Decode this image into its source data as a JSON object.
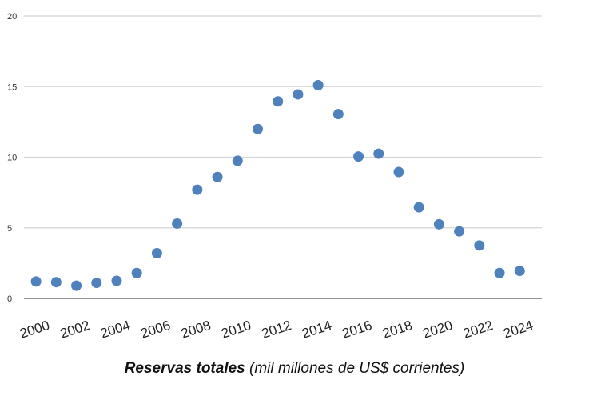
{
  "chart_data": {
    "type": "scatter",
    "title": "",
    "xlabel": "",
    "ylabel": "",
    "x": [
      2000,
      2001,
      2002,
      2003,
      2004,
      2005,
      2006,
      2007,
      2008,
      2009,
      2010,
      2011,
      2012,
      2013,
      2014,
      2015,
      2016,
      2017,
      2018,
      2019,
      2020,
      2021,
      2022,
      2023,
      2024
    ],
    "values": [
      1.2,
      1.15,
      0.9,
      1.1,
      1.25,
      1.8,
      3.2,
      5.3,
      7.7,
      8.6,
      9.75,
      12.0,
      13.95,
      14.45,
      15.1,
      13.05,
      10.05,
      10.25,
      8.95,
      6.45,
      5.25,
      4.75,
      3.75,
      1.8,
      1.95
    ],
    "xticks": [
      "2000",
      "2002",
      "2004",
      "2006",
      "2008",
      "2010",
      "2012",
      "2014",
      "2016",
      "2018",
      "2020",
      "2022",
      "2024"
    ],
    "yticks": [
      "0",
      "5",
      "10",
      "15",
      "20"
    ],
    "ylim": [
      0,
      20
    ],
    "xlim": [
      1999.4,
      2025.1
    ],
    "grid": true,
    "colors": {
      "marker": "#4f81bd",
      "grid": "#d4d4d4",
      "axis": "#555555"
    }
  },
  "caption": {
    "bold": "Reservas totales",
    "rest": " (mil millones de US$ corrientes)"
  }
}
